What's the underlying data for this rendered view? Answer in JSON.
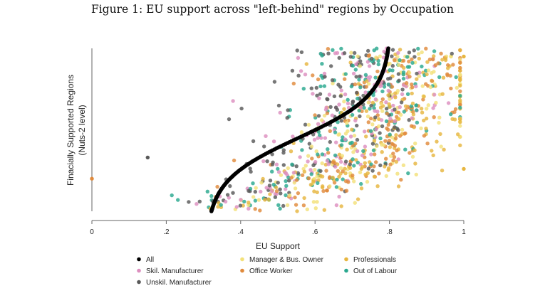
{
  "chart_data": {
    "type": "scatter",
    "title": "Figure 1: EU support across \"left-behind\" regions by Occupation",
    "xlabel": "EU Support",
    "ylabel": "Finacially Supported Regions",
    "ylabel_sub": "(Nuts-2 level)",
    "xlim": [
      0,
      1
    ],
    "xticks": [
      {
        "value": 0,
        "label": "0"
      },
      {
        "value": 0.2,
        "label": ".2"
      },
      {
        "value": 0.4,
        "label": ".4"
      },
      {
        "value": 0.6,
        "label": ".6"
      },
      {
        "value": 0.8,
        "label": ".8"
      },
      {
        "value": 1,
        "label": "1"
      }
    ],
    "ylim": [
      0,
      1
    ],
    "grid": false,
    "legend_position": "bottom",
    "series": [
      {
        "name": "All",
        "color": "#000000",
        "center": 0.58,
        "spread": 0.06,
        "count": 180,
        "trend": true
      },
      {
        "name": "Skil. Manufacturer",
        "color": "#dd8fbf",
        "center": 0.42,
        "spread": 0.1,
        "count": 150
      },
      {
        "name": "Unskil. Manufacturer",
        "color": "#595959",
        "center": 0.35,
        "spread": 0.1,
        "count": 160
      },
      {
        "name": "Manager & Bus. Owner",
        "color": "#f3e17a",
        "center": 0.6,
        "spread": 0.11,
        "count": 160
      },
      {
        "name": "Office Worker",
        "color": "#e08a3c",
        "center": 0.58,
        "spread": 0.11,
        "count": 170
      },
      {
        "name": "Professionals",
        "color": "#e7b640",
        "center": 0.65,
        "spread": 0.11,
        "count": 170
      },
      {
        "name": "Out of Labour",
        "color": "#2aa88f",
        "center": 0.45,
        "spread": 0.1,
        "count": 170
      }
    ],
    "annotations": [
      {
        "x": 0.0,
        "y": 0.2,
        "series": "Office Worker"
      },
      {
        "x": 1.0,
        "y": 0.26,
        "series": "Professionals"
      },
      {
        "x": 1.0,
        "y": 0.95,
        "series": "Professionals"
      },
      {
        "x": 0.15,
        "y": 0.33,
        "series": "Unskil. Manufacturer"
      }
    ]
  }
}
